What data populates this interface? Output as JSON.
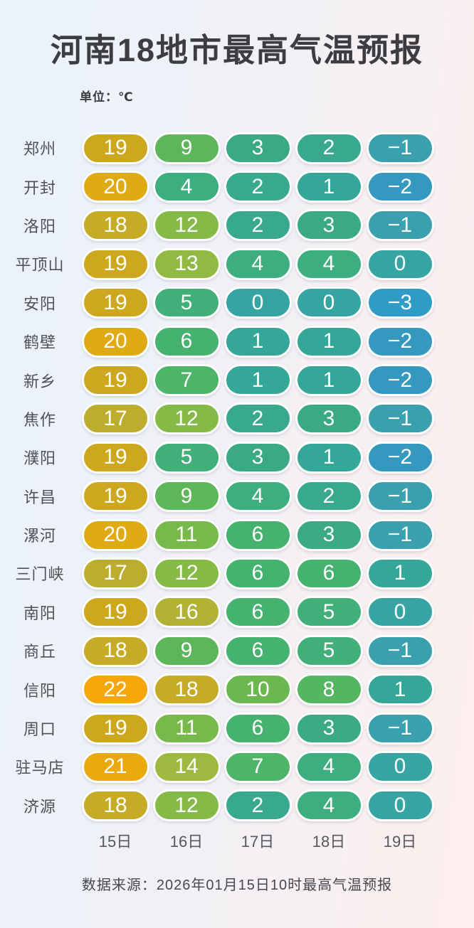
{
  "chart_data": {
    "type": "heatmap",
    "title": "河南18地市最高气温预报",
    "unit_label": "单位：℃",
    "columns": [
      "15日",
      "16日",
      "17日",
      "18日",
      "19日"
    ],
    "rows": [
      {
        "city": "郑州",
        "values": [
          19,
          9,
          3,
          2,
          -1
        ]
      },
      {
        "city": "开封",
        "values": [
          20,
          4,
          2,
          1,
          -2
        ]
      },
      {
        "city": "洛阳",
        "values": [
          18,
          12,
          2,
          3,
          -1
        ]
      },
      {
        "city": "平顶山",
        "values": [
          19,
          13,
          4,
          4,
          0
        ]
      },
      {
        "city": "安阳",
        "values": [
          19,
          5,
          0,
          0,
          -3
        ]
      },
      {
        "city": "鹤壁",
        "values": [
          20,
          6,
          1,
          1,
          -2
        ]
      },
      {
        "city": "新乡",
        "values": [
          19,
          7,
          1,
          1,
          -2
        ]
      },
      {
        "city": "焦作",
        "values": [
          17,
          12,
          2,
          3,
          -1
        ]
      },
      {
        "city": "濮阳",
        "values": [
          19,
          5,
          3,
          1,
          -2
        ]
      },
      {
        "city": "许昌",
        "values": [
          19,
          9,
          4,
          2,
          -1
        ]
      },
      {
        "city": "漯河",
        "values": [
          20,
          11,
          6,
          3,
          -1
        ]
      },
      {
        "city": "三门峡",
        "values": [
          17,
          12,
          6,
          6,
          1
        ]
      },
      {
        "city": "南阳",
        "values": [
          19,
          16,
          6,
          5,
          0
        ]
      },
      {
        "city": "商丘",
        "values": [
          18,
          9,
          6,
          5,
          -1
        ]
      },
      {
        "city": "信阳",
        "values": [
          22,
          18,
          10,
          8,
          1
        ]
      },
      {
        "city": "周口",
        "values": [
          19,
          11,
          6,
          3,
          -1
        ]
      },
      {
        "city": "驻马店",
        "values": [
          21,
          14,
          7,
          4,
          0
        ]
      },
      {
        "city": "济源",
        "values": [
          18,
          12,
          2,
          4,
          0
        ]
      }
    ],
    "source": "数据来源：2026年01月15日10时最高气温预报",
    "value_range": [
      -3,
      22
    ],
    "legend": false,
    "grid": false,
    "value_colors": {
      "-3": "#2F9BC7",
      "-2": "#3598BE",
      "-1": "#3AA0AE",
      "0": "#36A4A3",
      "1": "#35A798",
      "2": "#38A98E",
      "3": "#3AAA86",
      "4": "#3DAE7F",
      "5": "#41B078",
      "6": "#46B270",
      "7": "#4DB468",
      "8": "#54B660",
      "9": "#5DB75A",
      "10": "#6BB851",
      "11": "#78B94B",
      "12": "#85BA47",
      "13": "#91BA44",
      "14": "#9EB840",
      "16": "#B1B136",
      "17": "#BDAD2F",
      "18": "#C5AB26",
      "19": "#CDA81E",
      "20": "#DFAA13",
      "21": "#EAA90F",
      "22": "#F5A60B"
    }
  },
  "colors": {
    "background_left": "#EAF3FC",
    "background_right": "#FDEFED",
    "title_text": "#3D3D41",
    "city_label_text": "#4E5257",
    "pill_text": "#FFFFFF",
    "pill_border": "#FFFFFF"
  }
}
